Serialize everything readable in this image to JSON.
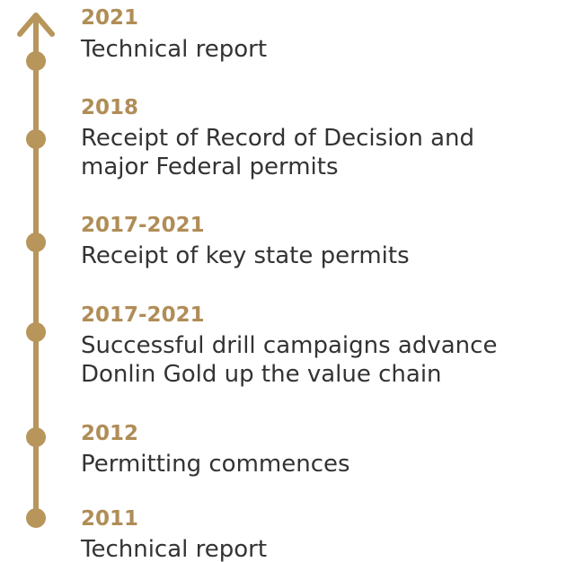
{
  "timeline": {
    "items": [
      {
        "year": "2021",
        "lines": [
          "Technical report"
        ]
      },
      {
        "year": "2018",
        "lines": [
          "Receipt of Record of Decision and",
          "major Federal permits"
        ]
      },
      {
        "year": "2017-2021",
        "lines": [
          "Receipt of key state permits"
        ]
      },
      {
        "year": "2017-2021",
        "lines": [
          "Successful drill campaigns advance",
          "Donlin Gold up the value chain"
        ]
      },
      {
        "year": "2012",
        "lines": [
          "Permitting commences"
        ]
      },
      {
        "year": "2011",
        "lines": [
          "Technical report"
        ]
      }
    ]
  }
}
